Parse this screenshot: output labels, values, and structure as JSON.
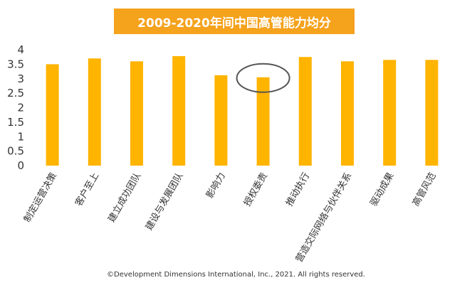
{
  "chart_data": {
    "type": "bar",
    "title": "2009-2020年间中国高管能力均分",
    "categories": [
      "制定运营决策",
      "客户至上",
      "建立成功团队",
      "建设与发展团队",
      "影响力",
      "授权委责",
      "推动执行",
      "营造交际网络与伙伴关系",
      "驱动成果",
      "高管风范"
    ],
    "values": [
      3.5,
      3.7,
      3.6,
      3.78,
      3.12,
      3.05,
      3.75,
      3.6,
      3.65,
      3.65
    ],
    "ylim": [
      0,
      4
    ],
    "yticks": [
      "0",
      "0.5",
      "1",
      "1.5",
      "2",
      "2.5",
      "3",
      "3.5",
      "4"
    ],
    "xlabel": "",
    "ylabel": "",
    "grid": false,
    "bar_color": "#FFB400",
    "highlight": {
      "category": "授权委责",
      "shape": "ellipse",
      "color": "#555555"
    }
  },
  "title_box": {
    "background": "#F5A21C",
    "text_color": "#FFFFFF"
  },
  "footer": {
    "text": "©Development Dimensions International, Inc., 2021. All rights reserved."
  }
}
